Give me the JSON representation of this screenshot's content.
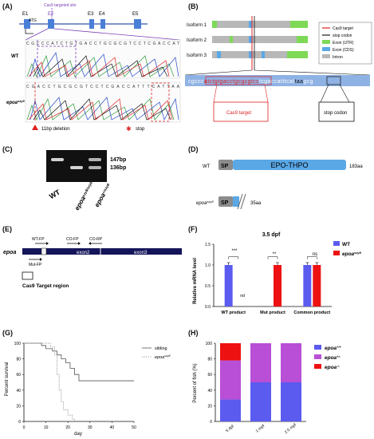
{
  "panels": {
    "A": {
      "label": "(A)",
      "exons": [
        "E1",
        "E2",
        "E3",
        "E4",
        "E5"
      ],
      "atg": "ATG",
      "cas9_site": "Cas9 targeted site",
      "wt_label": "WT",
      "wt_seq": "CGCCCATCTGTGACCTGCGCGTCCTCGACCAT",
      "mut_label": "epoa",
      "mut_sup": "szy8",
      "mut_seq": "CGACCTGCGCGTCCTCGACCATTTCATTAA",
      "deletion_note": "11bp deletion",
      "stop_note": "stop"
    },
    "B": {
      "label": "(B)",
      "isoforms": [
        "Isoform 1",
        "Isoform 2",
        "Isoform 3"
      ],
      "legend": [
        {
          "text": "Cas9 target",
          "color": "#e02020"
        },
        {
          "text": "stop codon",
          "color": "#1a1a1a"
        },
        {
          "text": "Exon (UTR)",
          "color": "#7ed957"
        },
        {
          "text": "Exon (CDS)",
          "color": "#5aa8e6"
        },
        {
          "text": "Intron",
          "color": "#b8b8b8"
        }
      ],
      "seq_prefix": "cgccc",
      "seq_target": "atctgtgacctgcgcgtcc",
      "seq_mid": "tcgaccatttcat",
      "seq_stop": "taa",
      "seq_suffix": "gcg",
      "cas9_target_box": "Cas9 target",
      "stop_codon_box": "stop codon"
    },
    "C": {
      "label": "(C)",
      "band1": "147bp",
      "band2": "136bp",
      "lanes": [
        {
          "main": "WT",
          "sup": ""
        },
        {
          "main": "epoa",
          "sup": "szy8/szy8"
        },
        {
          "main": "epoa",
          "sup": "+/szy8"
        }
      ]
    },
    "D": {
      "label": "(D)",
      "wt_label": "WT",
      "sp": "SP",
      "domain": "EPO-THPO",
      "wt_len": "183aa",
      "mut_label": "epoa",
      "mut_sup": "szy8",
      "mut_len": "35aa"
    },
    "E": {
      "label": "(E)",
      "gene": "epoa",
      "primers": [
        "WT-FP",
        "CO-FP",
        "CO-RP",
        "Mut-FP"
      ],
      "exon2": "exon2",
      "exon3": "exon3",
      "target_legend": "Cas9 Target region"
    },
    "F": {
      "label": "(F)",
      "title": "3.5 dpf",
      "ylabel": "Relative mRNA level",
      "legend": [
        {
          "text": "WT",
          "color": "#5b5bf0"
        },
        {
          "text": "epoa",
          "sup": "szy8",
          "color": "#ee1111"
        }
      ],
      "sig": [
        "***",
        "**",
        "ns"
      ],
      "nd": "nd",
      "yticks": [
        "0.0",
        "0.5",
        "1.0",
        "1.5"
      ]
    },
    "G": {
      "label": "(G)",
      "ylabel": "Percent survival",
      "xlabel": "day",
      "legend": [
        {
          "text": "sibling"
        },
        {
          "text": "epoa",
          "sup": "szy8"
        }
      ],
      "yticks": [
        "0",
        "20",
        "40",
        "60",
        "80",
        "100"
      ],
      "xticks": [
        "0",
        "10",
        "20",
        "30",
        "40",
        "50"
      ]
    },
    "H": {
      "label": "(H)",
      "ylabel": "Percent of fish (%)",
      "yticks": [
        "0",
        "20",
        "40",
        "60",
        "80",
        "100"
      ],
      "legend": [
        {
          "text": "epoa",
          "sup": "+/+",
          "color": "#5b5bf0"
        },
        {
          "text": "epoa",
          "sup": "+/-",
          "color": "#b84fd6"
        },
        {
          "text": "epoa",
          "sup": "-/-",
          "color": "#ee1111"
        }
      ]
    }
  },
  "chart_data": [
    {
      "type": "bar",
      "panel": "F",
      "title": "3.5 dpf",
      "ylabel": "Relative mRNA level",
      "categories": [
        "WT product",
        "Mut product",
        "Common product"
      ],
      "series": [
        {
          "name": "WT",
          "values": [
            1.0,
            0,
            1.0
          ]
        },
        {
          "name": "epoa szy8",
          "values": [
            0,
            1.0,
            1.0
          ]
        }
      ],
      "ylim": [
        0,
        1.5
      ]
    },
    {
      "type": "line",
      "panel": "G",
      "xlabel": "day",
      "ylabel": "Percent survival",
      "series": [
        {
          "name": "sibling",
          "x": [
            0,
            5,
            8,
            10,
            13,
            15,
            17,
            19,
            21,
            23,
            25,
            50
          ],
          "y": [
            100,
            100,
            97,
            93,
            90,
            85,
            80,
            75,
            68,
            60,
            52,
            52
          ]
        },
        {
          "name": "epoa szy8",
          "x": [
            0,
            8,
            12,
            14,
            15,
            16,
            17,
            18,
            20,
            22,
            23
          ],
          "y": [
            100,
            100,
            95,
            85,
            60,
            40,
            25,
            15,
            8,
            3,
            0
          ]
        }
      ],
      "xlim": [
        0,
        50
      ],
      "ylim": [
        0,
        100
      ]
    },
    {
      "type": "bar",
      "panel": "H",
      "ylabel": "Percent of fish (%)",
      "categories": [
        "5 dpf",
        "1 mpf",
        "2.5 mpf"
      ],
      "series": [
        {
          "name": "epoa +/+",
          "values": [
            28,
            50,
            50
          ]
        },
        {
          "name": "epoa +/-",
          "values": [
            50,
            50,
            50
          ]
        },
        {
          "name": "epoa -/-",
          "values": [
            22,
            0,
            0
          ]
        }
      ],
      "ylim": [
        0,
        100
      ]
    }
  ]
}
